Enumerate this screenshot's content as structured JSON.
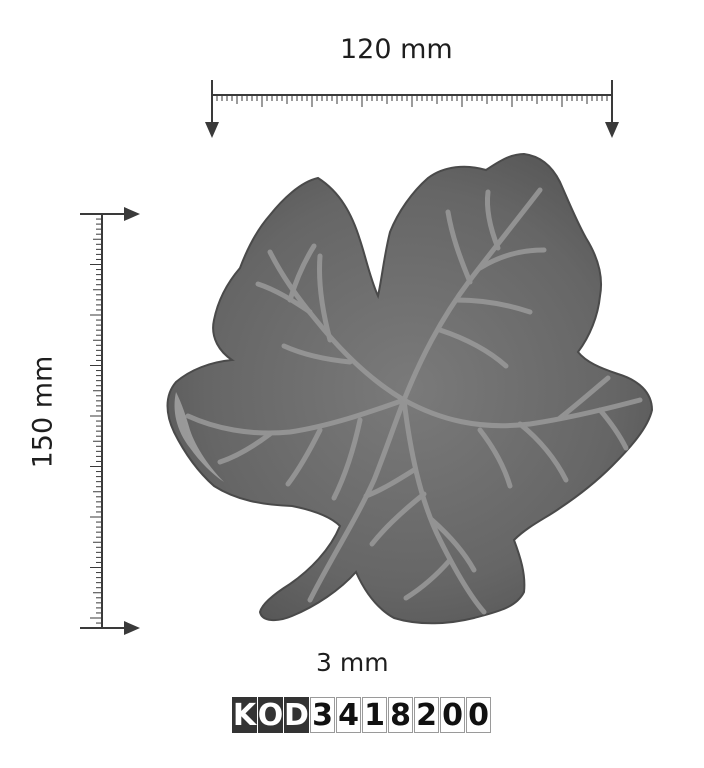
{
  "dimensions": {
    "width": "120 mm",
    "height": "150 mm",
    "thickness": "3 mm"
  },
  "code": {
    "prefix": [
      "K",
      "O",
      "D"
    ],
    "digits": [
      "3",
      "4",
      "1",
      "8",
      "2",
      "0",
      "0"
    ]
  },
  "colors": {
    "leaf": "#6a6a6a",
    "veins": "#9a9a9a",
    "ruler": "#3a3a3a",
    "code_prefix_bg": "#333333"
  },
  "icons": {
    "leaf": "grape-leaf-icon",
    "width_ruler": "horizontal-ruler-icon",
    "height_ruler": "vertical-ruler-icon"
  }
}
